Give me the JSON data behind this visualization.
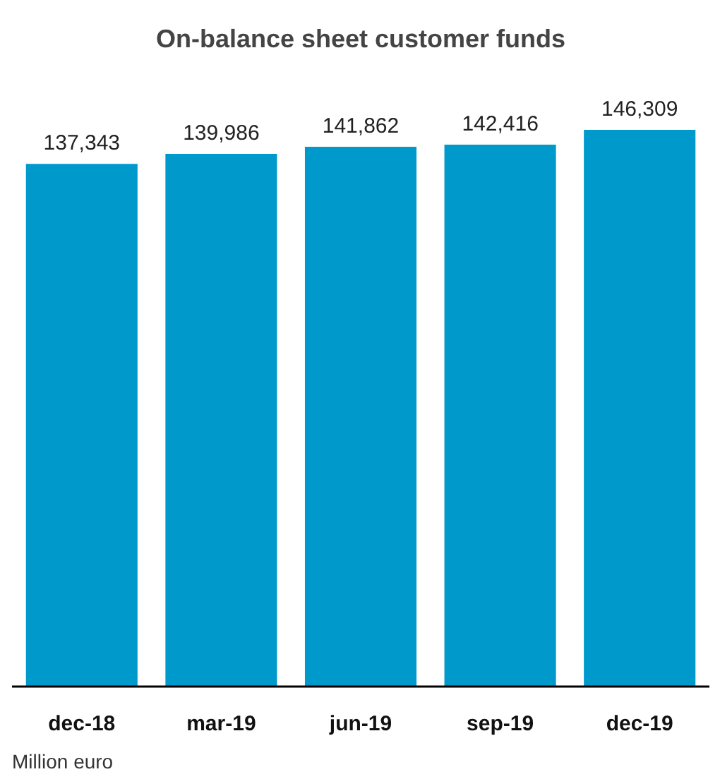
{
  "chart_data": {
    "type": "bar",
    "title": "On-balance sheet customer funds",
    "categories": [
      "dec-18",
      "mar-19",
      "jun-19",
      "sep-19",
      "dec-19"
    ],
    "values": [
      137343,
      139986,
      141862,
      142416,
      146309
    ],
    "value_labels": [
      "137,343",
      "139,986",
      "141,862",
      "142,416",
      "146,309"
    ],
    "color": "#0099cc",
    "annotations": [
      "Million euro"
    ]
  }
}
